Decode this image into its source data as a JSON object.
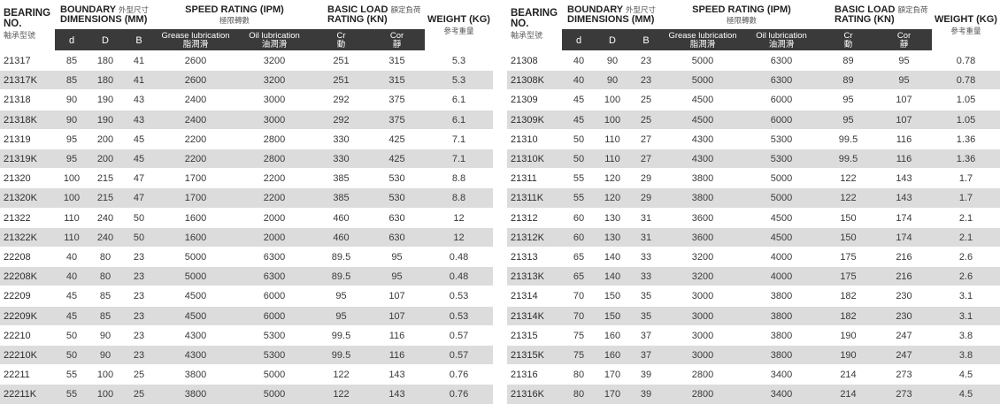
{
  "headers": {
    "bearing_no": "BEARING NO.",
    "bearing_no_cn": "軸承型號",
    "boundary": "BOUNDARY",
    "boundary_cn": "外型尺寸",
    "dimensions": "DIMENSIONS (MM)",
    "speed": "SPEED RATING (IPM)",
    "speed_cn": "極限轉數",
    "load": "BASIC LOAD",
    "load_cn": "額定負荷",
    "load_rating": "RATING (KN)",
    "weight": "WEIGHT (KG)",
    "weight_cn": "參考重量",
    "d": "d",
    "D": "D",
    "B": "B",
    "grease": "Grease lubrication",
    "grease_cn": "脂潤滑",
    "oil": "Oil lubrication",
    "oil_cn": "油潤滑",
    "cr": "Cr",
    "cr_cn": "動",
    "cor": "Cor",
    "cor_cn": "靜"
  },
  "left_rows": [
    [
      "21317",
      "85",
      "180",
      "41",
      "2600",
      "3200",
      "251",
      "315",
      "5.3"
    ],
    [
      "21317K",
      "85",
      "180",
      "41",
      "2600",
      "3200",
      "251",
      "315",
      "5.3"
    ],
    [
      "21318",
      "90",
      "190",
      "43",
      "2400",
      "3000",
      "292",
      "375",
      "6.1"
    ],
    [
      "21318K",
      "90",
      "190",
      "43",
      "2400",
      "3000",
      "292",
      "375",
      "6.1"
    ],
    [
      "21319",
      "95",
      "200",
      "45",
      "2200",
      "2800",
      "330",
      "425",
      "7.1"
    ],
    [
      "21319K",
      "95",
      "200",
      "45",
      "2200",
      "2800",
      "330",
      "425",
      "7.1"
    ],
    [
      "21320",
      "100",
      "215",
      "47",
      "1700",
      "2200",
      "385",
      "530",
      "8.8"
    ],
    [
      "21320K",
      "100",
      "215",
      "47",
      "1700",
      "2200",
      "385",
      "530",
      "8.8"
    ],
    [
      "21322",
      "110",
      "240",
      "50",
      "1600",
      "2000",
      "460",
      "630",
      "12"
    ],
    [
      "21322K",
      "110",
      "240",
      "50",
      "1600",
      "2000",
      "460",
      "630",
      "12"
    ],
    [
      "22208",
      "40",
      "80",
      "23",
      "5000",
      "6300",
      "89.5",
      "95",
      "0.48"
    ],
    [
      "22208K",
      "40",
      "80",
      "23",
      "5000",
      "6300",
      "89.5",
      "95",
      "0.48"
    ],
    [
      "22209",
      "45",
      "85",
      "23",
      "4500",
      "6000",
      "95",
      "107",
      "0.53"
    ],
    [
      "22209K",
      "45",
      "85",
      "23",
      "4500",
      "6000",
      "95",
      "107",
      "0.53"
    ],
    [
      "22210",
      "50",
      "90",
      "23",
      "4300",
      "5300",
      "99.5",
      "116",
      "0.57"
    ],
    [
      "22210K",
      "50",
      "90",
      "23",
      "4300",
      "5300",
      "99.5",
      "116",
      "0.57"
    ],
    [
      "22211",
      "55",
      "100",
      "25",
      "3800",
      "5000",
      "122",
      "143",
      "0.76"
    ],
    [
      "22211K",
      "55",
      "100",
      "25",
      "3800",
      "5000",
      "122",
      "143",
      "0.76"
    ]
  ],
  "right_rows": [
    [
      "21308",
      "40",
      "90",
      "23",
      "5000",
      "6300",
      "89",
      "95",
      "0.78"
    ],
    [
      "21308K",
      "40",
      "90",
      "23",
      "5000",
      "6300",
      "89",
      "95",
      "0.78"
    ],
    [
      "21309",
      "45",
      "100",
      "25",
      "4500",
      "6000",
      "95",
      "107",
      "1.05"
    ],
    [
      "21309K",
      "45",
      "100",
      "25",
      "4500",
      "6000",
      "95",
      "107",
      "1.05"
    ],
    [
      "21310",
      "50",
      "110",
      "27",
      "4300",
      "5300",
      "99.5",
      "116",
      "1.36"
    ],
    [
      "21310K",
      "50",
      "110",
      "27",
      "4300",
      "5300",
      "99.5",
      "116",
      "1.36"
    ],
    [
      "21311",
      "55",
      "120",
      "29",
      "3800",
      "5000",
      "122",
      "143",
      "1.7"
    ],
    [
      "21311K",
      "55",
      "120",
      "29",
      "3800",
      "5000",
      "122",
      "143",
      "1.7"
    ],
    [
      "21312",
      "60",
      "130",
      "31",
      "3600",
      "4500",
      "150",
      "174",
      "2.1"
    ],
    [
      "21312K",
      "60",
      "130",
      "31",
      "3600",
      "4500",
      "150",
      "174",
      "2.1"
    ],
    [
      "21313",
      "65",
      "140",
      "33",
      "3200",
      "4000",
      "175",
      "216",
      "2.6"
    ],
    [
      "21313K",
      "65",
      "140",
      "33",
      "3200",
      "4000",
      "175",
      "216",
      "2.6"
    ],
    [
      "21314",
      "70",
      "150",
      "35",
      "3000",
      "3800",
      "182",
      "230",
      "3.1"
    ],
    [
      "21314K",
      "70",
      "150",
      "35",
      "3000",
      "3800",
      "182",
      "230",
      "3.1"
    ],
    [
      "21315",
      "75",
      "160",
      "37",
      "3000",
      "3800",
      "190",
      "247",
      "3.8"
    ],
    [
      "21315K",
      "75",
      "160",
      "37",
      "3000",
      "3800",
      "190",
      "247",
      "3.8"
    ],
    [
      "21316",
      "80",
      "170",
      "39",
      "2800",
      "3400",
      "214",
      "273",
      "4.5"
    ],
    [
      "21316K",
      "80",
      "170",
      "39",
      "2800",
      "3400",
      "214",
      "273",
      "4.5"
    ]
  ]
}
